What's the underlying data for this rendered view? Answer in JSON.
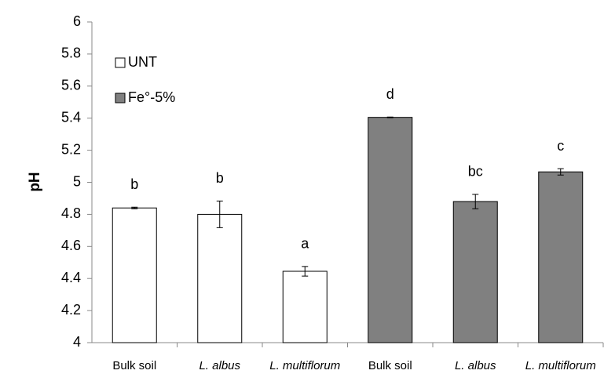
{
  "chart_data": {
    "type": "bar",
    "y_label": "pH",
    "categories": [
      "Bulk soil",
      "L. albus",
      "L. multiflorum",
      "Bulk soil",
      "L. albus",
      "L. multiflorum"
    ],
    "series": [
      {
        "name": "UNT",
        "color": "#ffffff",
        "values": [
          4.84,
          4.8,
          4.445,
          null,
          null,
          null
        ],
        "errors": [
          0.005,
          0.083,
          0.03,
          null,
          null,
          null
        ]
      },
      {
        "name": "Fe°-5%",
        "color": "#808080",
        "values": [
          null,
          null,
          null,
          5.405,
          4.88,
          5.065
        ],
        "errors": [
          null,
          null,
          null,
          0.002,
          0.045,
          0.02
        ]
      }
    ],
    "letters": [
      "b",
      "b",
      "a",
      "d",
      "bc",
      "c"
    ],
    "ylim": [
      4,
      6
    ],
    "yticks": [
      4,
      4.2,
      4.4,
      4.6,
      4.8,
      5,
      5.2,
      5.4,
      5.6,
      5.8,
      6
    ],
    "legend": "upper-left"
  }
}
